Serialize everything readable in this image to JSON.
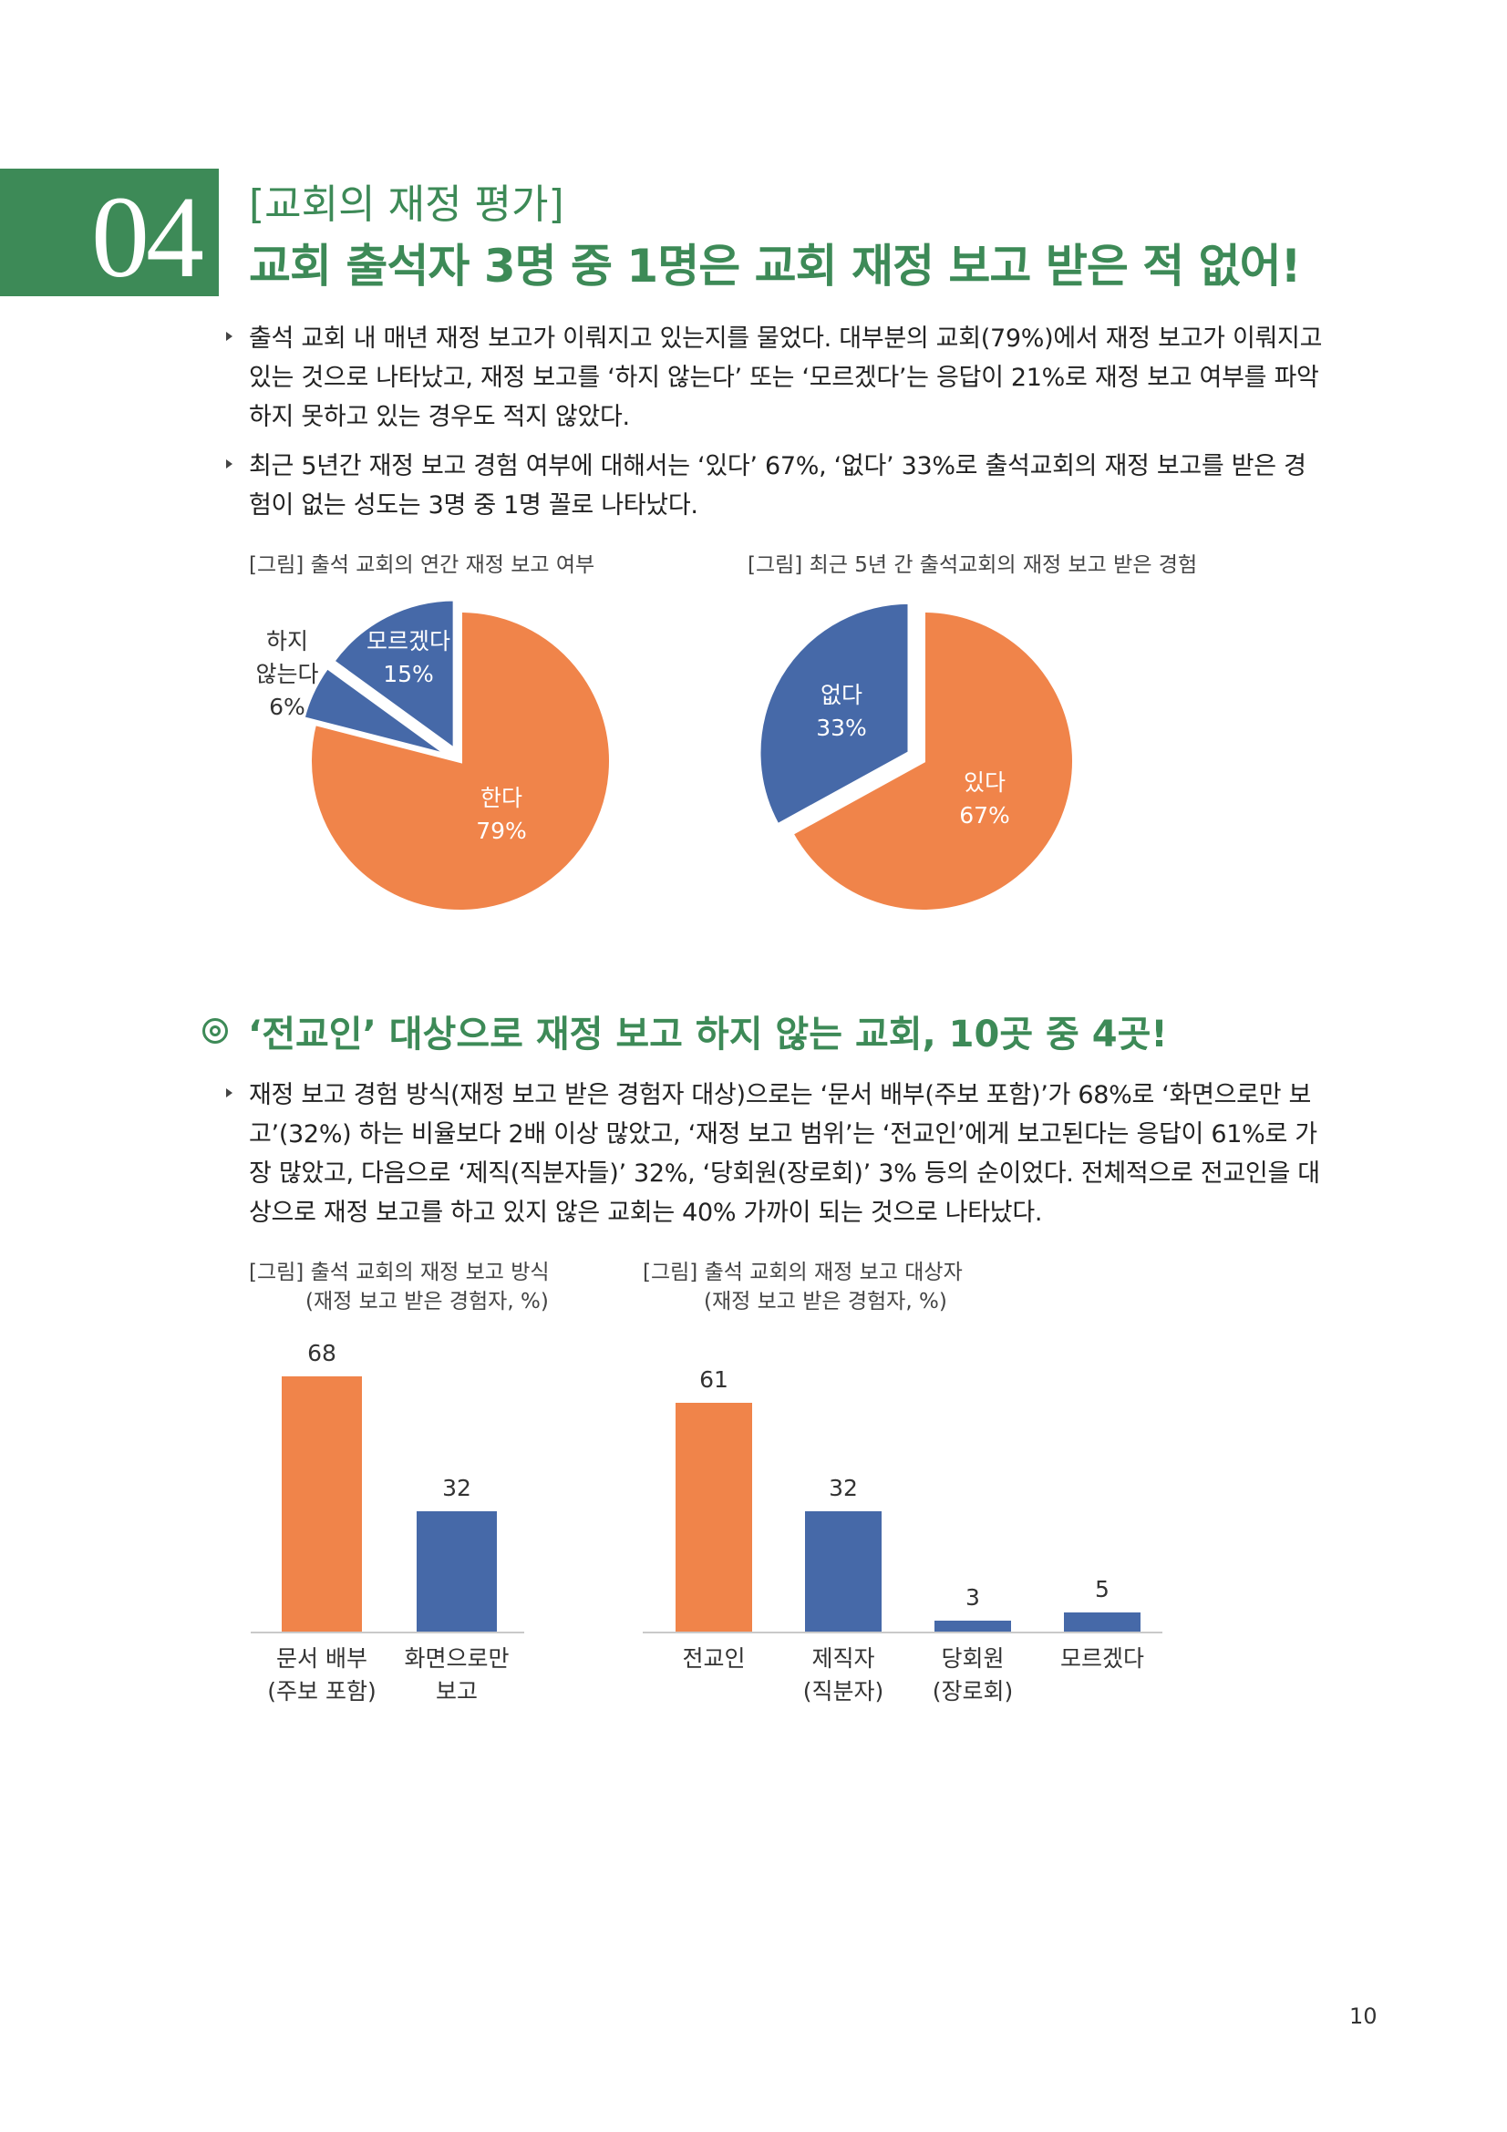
{
  "header": {
    "number": "04",
    "subtitle": "[교회의 재정 평가]",
    "title": "교회 출석자 3명 중 1명은 교회 재정 보고 받은 적 없어!"
  },
  "paragraph1": {
    "lines": [
      "출석 교회 내 매년 재정 보고가 이뤄지고 있는지를 물었다. 대부분의 교회(79%)에서 재정 보고가 이뤄지고",
      "있는 것으로 나타났고, 재정 보고를 ‘하지 않는다’ 또는 ‘모르겠다’는 응답이 21%로 재정 보고 여부를 파악",
      "하지 못하고 있는 경우도 적지 않았다."
    ]
  },
  "paragraph2": {
    "lines": [
      "최근 5년간 재정 보고 경험 여부에 대해서는 ‘있다’ 67%, ‘없다’ 33%로 출석교회의 재정 보고를 받은 경",
      "험이 없는 성도는 3명 중 1명 꼴로 나타났다."
    ]
  },
  "pie1": {
    "figure_title": "[그림] 출석 교회의 연간 재정 보고 여부",
    "slices": [
      {
        "label": "한다",
        "pct": "79%",
        "value": 79,
        "color": "#f0844a"
      },
      {
        "label": "하지 않는다",
        "label_lines": [
          "하지",
          "않는다"
        ],
        "pct": "6%",
        "value": 6,
        "color": "#4669a8"
      },
      {
        "label": "모르겠다",
        "pct": "15%",
        "value": 15,
        "color": "#4669a8"
      }
    ]
  },
  "pie2": {
    "figure_title": "[그림] 최근 5년 간 출석교회의 재정 보고 받은 경험",
    "slices": [
      {
        "label": "있다",
        "pct": "67%",
        "value": 67,
        "color": "#f0844a"
      },
      {
        "label": "없다",
        "pct": "33%",
        "value": 33,
        "color": "#4669a8"
      }
    ]
  },
  "section2": {
    "title": "‘전교인’ 대상으로 재정 보고 하지 않는 교회, 10곳 중 4곳!"
  },
  "paragraph3": {
    "lines": [
      "재정 보고 경험 방식(재정 보고 받은 경험자 대상)으로는 ‘문서 배부(주보 포함)’가 68%로 ‘화면으로만 보",
      "고’(32%) 하는 비율보다 2배 이상 많았고, ‘재정 보고 범위’는 ‘전교인’에게 보고된다는 응답이 61%로 가",
      "장 많았고, 다음으로 ‘제직(직분자들)’ 32%, ‘당회원(장로회)’ 3% 등의 순이었다. 전체적으로 전교인을 대",
      "상으로 재정 보고를 하고 있지 않은 교회는 40% 가까이 되는 것으로 나타났다."
    ]
  },
  "chart_data": [
    {
      "type": "bar",
      "title": "[그림] 출석 교회의 재정 보고 방식",
      "subtitle": "(재정 보고 받은 경험자, %)",
      "categories": [
        "문서 배부 (주보 포함)",
        "화면으로만 보고"
      ],
      "category_lines": [
        [
          "문서 배부",
          "(주보 포함)"
        ],
        [
          "화면으로만",
          "보고"
        ]
      ],
      "values": [
        68,
        32
      ],
      "colors": [
        "#f0844a",
        "#4669a8"
      ],
      "ylim": [
        0,
        68
      ]
    },
    {
      "type": "bar",
      "title": "[그림] 출석 교회의 재정 보고 대상자",
      "subtitle": "(재정 보고 받은 경험자, %)",
      "categories": [
        "전교인",
        "제직자 (직분자)",
        "당회원 (장로회)",
        "모르겠다"
      ],
      "category_lines": [
        [
          "전교인"
        ],
        [
          "제직자",
          "(직분자)"
        ],
        [
          "당회원",
          "(장로회)"
        ],
        [
          "모르겠다"
        ]
      ],
      "values": [
        61,
        32,
        3,
        5
      ],
      "colors": [
        "#f0844a",
        "#4669a8",
        "#4669a8",
        "#4669a8"
      ],
      "ylim": [
        0,
        68
      ]
    },
    {
      "type": "pie",
      "title": "[그림] 출석 교회의 연간 재정 보고 여부",
      "categories": [
        "한다",
        "하지 않는다",
        "모르겠다"
      ],
      "values": [
        79,
        6,
        15
      ]
    },
    {
      "type": "pie",
      "title": "[그림] 최근 5년 간 출석교회의 재정 보고 받은 경험",
      "categories": [
        "있다",
        "없다"
      ],
      "values": [
        67,
        33
      ]
    }
  ],
  "footer": {
    "page_number": "10"
  }
}
